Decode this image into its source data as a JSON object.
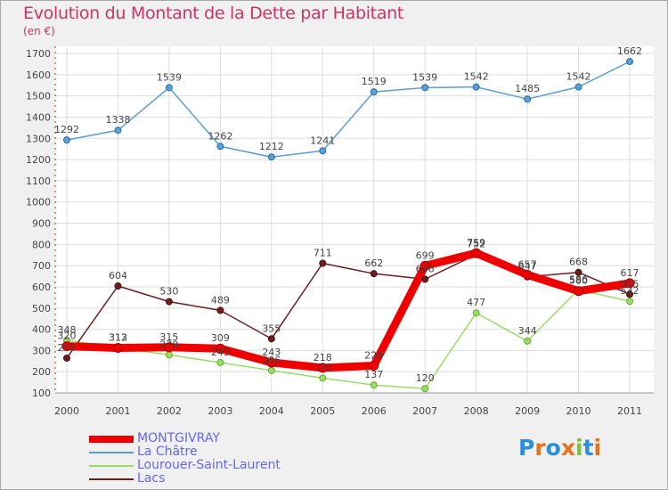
{
  "title": "Evolution du Montant de la Dette par Habitant",
  "unit": "(en €)",
  "brand": {
    "text": "Proxiti",
    "colors": [
      "#2a8fd8",
      "#e8731a",
      "#2a8fd8",
      "#e8731a",
      "#7bc043",
      "#2a8fd8",
      "#e8731a"
    ]
  },
  "chart_data": {
    "type": "line",
    "x": [
      "2000",
      "2001",
      "2002",
      "2003",
      "2004",
      "2005",
      "2006",
      "2007",
      "2008",
      "2009",
      "2010",
      "2011"
    ],
    "ylim": [
      100,
      1700
    ],
    "yticks": [
      100,
      200,
      300,
      400,
      500,
      600,
      700,
      800,
      900,
      1000,
      1100,
      1200,
      1300,
      1400,
      1500,
      1600,
      1700
    ],
    "grid": true,
    "legend_position": "bottom-left",
    "series": [
      {
        "name": "MONTGIVRAY",
        "color": "#ee0000",
        "values": [
          320,
          312,
          315,
          309,
          243,
          218,
          228,
          699,
          759,
          657,
          580,
          617
        ]
      },
      {
        "name": "La Châtre",
        "color": "#5a9fd4",
        "values": [
          1292,
          1338,
          1539,
          1262,
          1212,
          1241,
          1519,
          1539,
          1542,
          1485,
          1542,
          1662
        ]
      },
      {
        "name": "Lourouer-Saint-Laurent",
        "color": "#99dd66",
        "values": [
          348,
          313,
          279,
          243,
          206,
          170,
          137,
          120,
          477,
          344,
          586,
          532
        ]
      },
      {
        "name": "Lacs",
        "color": "#6b1e1e",
        "values": [
          264,
          604,
          530,
          489,
          355,
          711,
          662,
          636,
          752,
          647,
          668,
          565
        ]
      }
    ]
  }
}
